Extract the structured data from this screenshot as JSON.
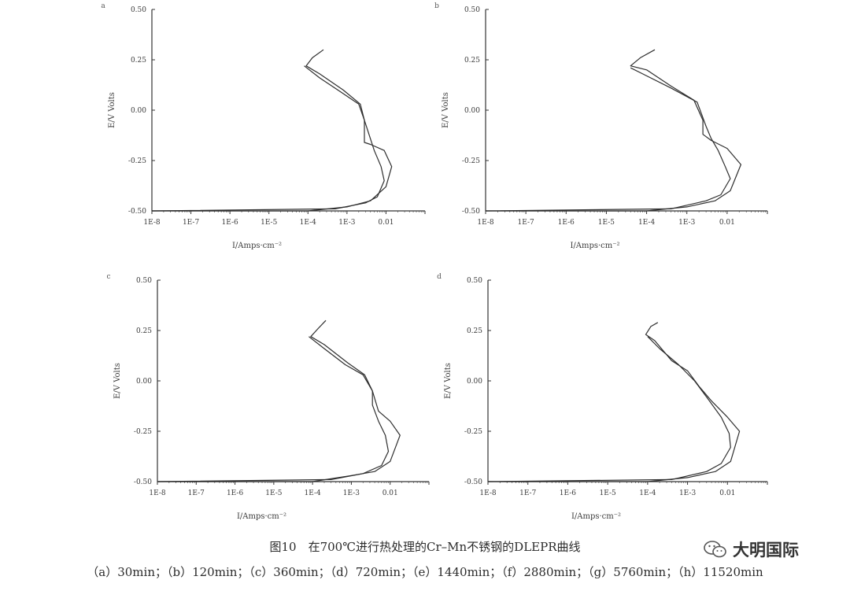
{
  "figure": {
    "caption": "图10　在700℃进行热处理的Cr–Mn不锈钢的DLEPR曲线",
    "legend": "（a）30min；（b）120min；（c）360min；（d）720min；（e）1440min；（f）2880min；（g）5760min；（h）11520min"
  },
  "watermark": {
    "text": "大明国际",
    "icon": "wechat-icon"
  },
  "chart_data": [
    {
      "type": "line",
      "panel_label": "a",
      "ylabel": "E/V Volts",
      "xlabel": "I/Amps·cm⁻²",
      "x_scale": "log",
      "xlim": [
        1e-08,
        0.1
      ],
      "ylim": [
        -0.5,
        0.5
      ],
      "x_ticks": [
        "1E-8",
        "1E-7",
        "1E-6",
        "1E-5",
        "1E-4",
        "1E-3",
        "0.01"
      ],
      "y_ticks": [
        "0.50",
        "0.25",
        "0.00",
        "-0.25",
        "-0.50"
      ],
      "series": [
        {
          "points": [
            [
              1e-08,
              -0.5
            ],
            [
              0.0001,
              -0.5
            ],
            [
              0.001,
              -0.48
            ],
            [
              0.004,
              -0.45
            ],
            [
              0.01,
              -0.38
            ],
            [
              0.014,
              -0.28
            ],
            [
              0.009,
              -0.2
            ],
            [
              0.004,
              -0.17
            ],
            [
              0.0028,
              -0.16
            ],
            [
              0.0028,
              -0.05
            ],
            [
              0.0022,
              0.03
            ],
            [
              0.0008,
              0.1
            ],
            [
              0.0002,
              0.18
            ],
            [
              9e-05,
              0.22
            ],
            [
              0.00013,
              0.26
            ],
            [
              0.00025,
              0.3
            ]
          ]
        },
        {
          "points": [
            [
              1e-08,
              -0.5
            ],
            [
              0.0005,
              -0.49
            ],
            [
              0.003,
              -0.46
            ],
            [
              0.006,
              -0.43
            ],
            [
              0.009,
              -0.35
            ],
            [
              0.0075,
              -0.28
            ],
            [
              0.005,
              -0.2
            ],
            [
              0.0028,
              -0.05
            ],
            [
              0.002,
              0.03
            ],
            [
              0.0007,
              0.09
            ],
            [
              0.0002,
              0.16
            ],
            [
              8e-05,
              0.22
            ]
          ]
        }
      ]
    },
    {
      "type": "line",
      "panel_label": "b",
      "ylabel": "E/V Volts",
      "xlabel": "I/Amps·cm⁻²",
      "x_scale": "log",
      "xlim": [
        1e-08,
        0.1
      ],
      "ylim": [
        -0.5,
        0.5
      ],
      "x_ticks": [
        "1E-8",
        "1E-7",
        "1E-6",
        "1E-5",
        "1E-4",
        "1E-3",
        "0.01"
      ],
      "y_ticks": [
        "0.50",
        "0.25",
        "0.00",
        "-0.25",
        "-0.50"
      ],
      "series": [
        {
          "points": [
            [
              1e-08,
              -0.5
            ],
            [
              0.0001,
              -0.5
            ],
            [
              0.001,
              -0.48
            ],
            [
              0.005,
              -0.45
            ],
            [
              0.012,
              -0.4
            ],
            [
              0.022,
              -0.27
            ],
            [
              0.01,
              -0.19
            ],
            [
              0.004,
              -0.15
            ],
            [
              0.0025,
              -0.12
            ],
            [
              0.0025,
              -0.05
            ],
            [
              0.0015,
              0.05
            ],
            [
              0.0004,
              0.12
            ],
            [
              0.0001,
              0.2
            ],
            [
              4e-05,
              0.22
            ],
            [
              7e-05,
              0.26
            ],
            [
              0.00016,
              0.3
            ]
          ]
        },
        {
          "points": [
            [
              1e-08,
              -0.5
            ],
            [
              0.0004,
              -0.49
            ],
            [
              0.003,
              -0.45
            ],
            [
              0.007,
              -0.42
            ],
            [
              0.012,
              -0.34
            ],
            [
              0.009,
              -0.28
            ],
            [
              0.006,
              -0.2
            ],
            [
              0.004,
              -0.14
            ],
            [
              0.003,
              -0.08
            ],
            [
              0.0018,
              0.04
            ],
            [
              0.0004,
              0.11
            ],
            [
              8e-05,
              0.18
            ],
            [
              4e-05,
              0.21
            ]
          ]
        }
      ]
    },
    {
      "type": "line",
      "panel_label": "c",
      "ylabel": "E/V Volts",
      "xlabel": "I/Amps·cm⁻²",
      "x_scale": "log",
      "xlim": [
        1e-08,
        0.1
      ],
      "ylim": [
        -0.5,
        0.5
      ],
      "x_ticks": [
        "1E-8",
        "1E-7",
        "1E-6",
        "1E-5",
        "1E-4",
        "1E-3",
        "0.01"
      ],
      "y_ticks": [
        "0.50",
        "0.25",
        "0.00",
        "-0.25",
        "-0.50"
      ],
      "series": [
        {
          "points": [
            [
              1e-08,
              -0.5
            ],
            [
              0.0001,
              -0.5
            ],
            [
              0.001,
              -0.47
            ],
            [
              0.004,
              -0.45
            ],
            [
              0.01,
              -0.4
            ],
            [
              0.018,
              -0.27
            ],
            [
              0.01,
              -0.2
            ],
            [
              0.005,
              -0.15
            ],
            [
              0.0035,
              -0.05
            ],
            [
              0.0022,
              0.03
            ],
            [
              0.0008,
              0.09
            ],
            [
              0.0002,
              0.18
            ],
            [
              9e-05,
              0.22
            ],
            [
              0.00014,
              0.26
            ],
            [
              0.00022,
              0.3
            ]
          ]
        },
        {
          "points": [
            [
              1e-08,
              -0.5
            ],
            [
              0.0003,
              -0.49
            ],
            [
              0.002,
              -0.46
            ],
            [
              0.006,
              -0.42
            ],
            [
              0.009,
              -0.35
            ],
            [
              0.0075,
              -0.27
            ],
            [
              0.005,
              -0.2
            ],
            [
              0.0035,
              -0.12
            ],
            [
              0.0035,
              -0.05
            ],
            [
              0.002,
              0.03
            ],
            [
              0.0007,
              0.08
            ],
            [
              0.0002,
              0.16
            ],
            [
              8e-05,
              0.22
            ]
          ]
        }
      ]
    },
    {
      "type": "line",
      "panel_label": "d",
      "ylabel": "E/V Volts",
      "xlabel": "I/Amps·cm⁻²",
      "x_scale": "log",
      "xlim": [
        1e-08,
        0.1
      ],
      "ylim": [
        -0.5,
        0.5
      ],
      "x_ticks": [
        "1E-8",
        "1E-7",
        "1E-6",
        "1E-5",
        "1E-4",
        "1E-3",
        "0.01"
      ],
      "y_ticks": [
        "0.50",
        "0.25",
        "0.00",
        "-0.25",
        "-0.50"
      ],
      "series": [
        {
          "points": [
            [
              1e-08,
              -0.5
            ],
            [
              0.0001,
              -0.5
            ],
            [
              0.001,
              -0.48
            ],
            [
              0.005,
              -0.45
            ],
            [
              0.012,
              -0.4
            ],
            [
              0.02,
              -0.25
            ],
            [
              0.01,
              -0.18
            ],
            [
              0.004,
              -0.1
            ],
            [
              0.002,
              -0.03
            ],
            [
              0.001,
              0.05
            ],
            [
              0.0004,
              0.1
            ],
            [
              0.00015,
              0.2
            ],
            [
              9e-05,
              0.23
            ],
            [
              0.00012,
              0.27
            ],
            [
              0.00018,
              0.29
            ]
          ]
        },
        {
          "points": [
            [
              1e-08,
              -0.5
            ],
            [
              0.0004,
              -0.49
            ],
            [
              0.003,
              -0.45
            ],
            [
              0.007,
              -0.41
            ],
            [
              0.012,
              -0.33
            ],
            [
              0.011,
              -0.26
            ],
            [
              0.007,
              -0.18
            ],
            [
              0.003,
              -0.08
            ],
            [
              0.0015,
              0.0
            ],
            [
              0.0006,
              0.08
            ],
            [
              0.0002,
              0.16
            ],
            [
              0.0001,
              0.22
            ]
          ]
        }
      ]
    }
  ]
}
